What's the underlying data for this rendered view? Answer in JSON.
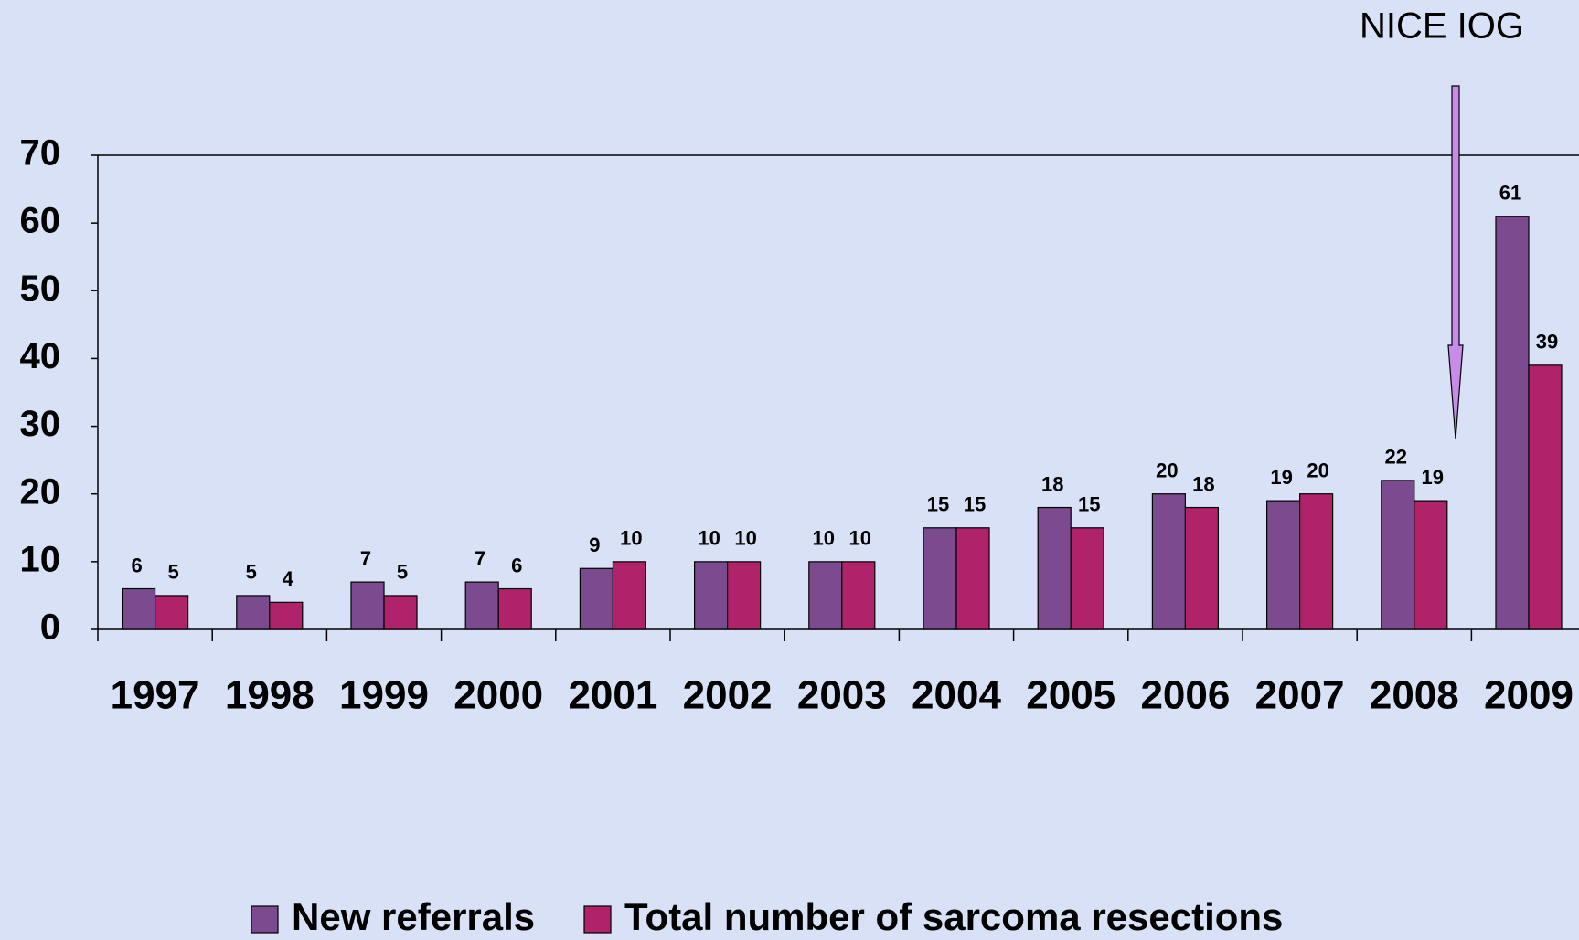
{
  "chart_data": {
    "type": "bar",
    "categories": [
      "1997",
      "1998",
      "1999",
      "2000",
      "2001",
      "2002",
      "2003",
      "2004",
      "2005",
      "2006",
      "2007",
      "2008",
      "2009"
    ],
    "series": [
      {
        "name": "New referrals",
        "color": "#7b4a8f",
        "values": [
          6,
          5,
          7,
          7,
          9,
          10,
          10,
          15,
          18,
          20,
          19,
          22,
          61
        ]
      },
      {
        "name": "Total number of sarcoma resections",
        "color": "#b0226a",
        "values": [
          5,
          4,
          5,
          6,
          10,
          10,
          10,
          15,
          15,
          18,
          20,
          19,
          39
        ]
      }
    ],
    "ylim": [
      0,
      70
    ],
    "yticks": [
      0,
      10,
      20,
      30,
      40,
      50,
      60,
      70
    ],
    "annotation": "NICE IOG",
    "annotation_color": "#c98be8",
    "legend": "bottom"
  }
}
